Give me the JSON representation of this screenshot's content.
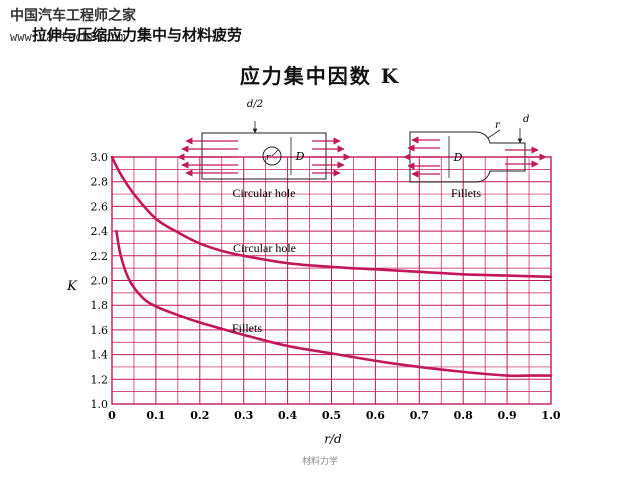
{
  "watermark": {
    "name": "中国汽车工程师之家",
    "url": "www.cartech8.com"
  },
  "header": {
    "title": "拉伸与压缩应力集中与材料疲劳"
  },
  "footer": {
    "text": "材料力学"
  },
  "chart_data": {
    "type": "line",
    "title": "应力集中因数 K",
    "xlabel": "r/d",
    "ylabel": "K",
    "xlim": [
      0,
      1.0
    ],
    "ylim": [
      1.0,
      3.0
    ],
    "x_ticks": [
      "0",
      "0.1",
      "0.2",
      "0.3",
      "0.4",
      "0.5",
      "0.6",
      "0.7",
      "0.8",
      "0.9",
      "1.0"
    ],
    "y_ticks": [
      "1.0",
      "1.2",
      "1.4",
      "1.6",
      "1.8",
      "2.0",
      "2.2",
      "2.4",
      "2.6",
      "2.8",
      "3.0"
    ],
    "grid": true,
    "line_color": "#c2185b",
    "series": [
      {
        "name": "Circular hole",
        "x": [
          0,
          0.02,
          0.05,
          0.1,
          0.15,
          0.2,
          0.25,
          0.3,
          0.4,
          0.5,
          0.6,
          0.7,
          0.8,
          0.9,
          1.0
        ],
        "y": [
          3.0,
          2.86,
          2.7,
          2.5,
          2.39,
          2.3,
          2.24,
          2.2,
          2.14,
          2.11,
          2.09,
          2.07,
          2.05,
          2.04,
          2.03
        ]
      },
      {
        "name": "Fillets",
        "x": [
          0.01,
          0.02,
          0.04,
          0.07,
          0.1,
          0.15,
          0.2,
          0.3,
          0.4,
          0.5,
          0.6,
          0.7,
          0.8,
          0.9,
          0.95,
          1.0
        ],
        "y": [
          2.4,
          2.2,
          2.0,
          1.86,
          1.79,
          1.72,
          1.66,
          1.56,
          1.47,
          1.41,
          1.35,
          1.3,
          1.26,
          1.23,
          1.23,
          1.23
        ]
      }
    ],
    "diagrams": {
      "circular": {
        "caption": "Circular hole",
        "dim_top": "d/2",
        "dim_side": "D",
        "label_r": "r"
      },
      "fillets": {
        "caption": "Fillets",
        "dim_top": "d",
        "dim_side": "D",
        "label_r": "r"
      }
    }
  }
}
